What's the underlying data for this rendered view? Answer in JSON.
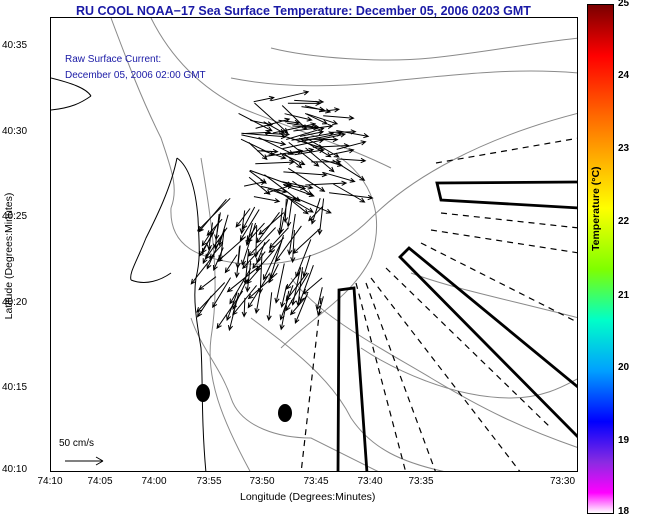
{
  "title": "RU COOL  NOAA−17  Sea Surface Temperature:  December 05, 2006 0203 GMT",
  "annotation": {
    "line1": "Raw Surface Current:",
    "line2": "December 05, 2006 02:00 GMT"
  },
  "axes": {
    "xlabel": "Longitude (Degrees:Minutes)",
    "ylabel": "Latitude (Degrees:Minutes)",
    "xticks": [
      "74:10",
      "74:05",
      "74:00",
      "73:55",
      "73:50",
      "73:45",
      "73:40",
      "73:35",
      "73:30"
    ],
    "yticks": [
      "40:35",
      "40:30",
      "40:25",
      "40:20",
      "40:15",
      "40:10"
    ]
  },
  "colorbar": {
    "title": "Temperature (°C)",
    "ticks": [
      "25",
      "24",
      "23",
      "22",
      "21",
      "20",
      "19",
      "18"
    ],
    "range": [
      18,
      25
    ]
  },
  "scale_label": "50 cm/s",
  "colors": {
    "title": "#1a1aa6",
    "coast": "#000000",
    "bathymetry": "#888888"
  }
}
